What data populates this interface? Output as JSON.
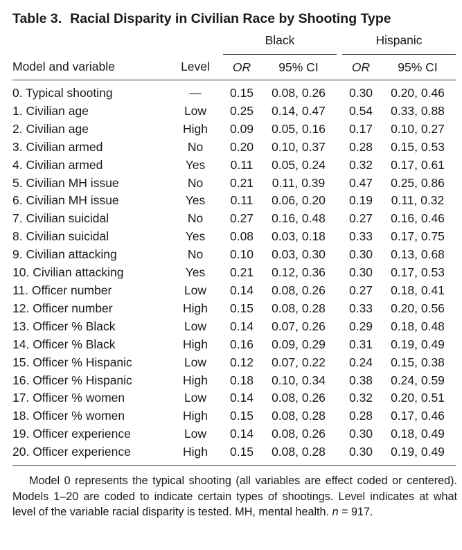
{
  "table": {
    "title_num": "Table 3.",
    "title_text": "Racial Disparity in Civilian Race by Shooting Type",
    "groups": {
      "black": "Black",
      "hispanic": "Hispanic"
    },
    "headers": {
      "model": "Model and variable",
      "level": "Level",
      "or_black": "OR",
      "ci_black": "95% CI",
      "or_hispanic": "OR",
      "ci_hispanic": "95% CI"
    },
    "rows": [
      {
        "model": "0. Typical shooting",
        "level": "—",
        "or_b": "0.15",
        "ci_b": "0.08, 0.26",
        "or_h": "0.30",
        "ci_h": "0.20, 0.46"
      },
      {
        "model": "1. Civilian age",
        "level": "Low",
        "or_b": "0.25",
        "ci_b": "0.14, 0.47",
        "or_h": "0.54",
        "ci_h": "0.33, 0.88"
      },
      {
        "model": "2. Civilian age",
        "level": "High",
        "or_b": "0.09",
        "ci_b": "0.05, 0.16",
        "or_h": "0.17",
        "ci_h": "0.10, 0.27"
      },
      {
        "model": "3. Civilian armed",
        "level": "No",
        "or_b": "0.20",
        "ci_b": "0.10, 0.37",
        "or_h": "0.28",
        "ci_h": "0.15, 0.53"
      },
      {
        "model": "4. Civilian armed",
        "level": "Yes",
        "or_b": "0.11",
        "ci_b": "0.05, 0.24",
        "or_h": "0.32",
        "ci_h": "0.17, 0.61"
      },
      {
        "model": "5. Civilian MH issue",
        "level": "No",
        "or_b": "0.21",
        "ci_b": "0.11, 0.39",
        "or_h": "0.47",
        "ci_h": "0.25, 0.86"
      },
      {
        "model": "6. Civilian MH issue",
        "level": "Yes",
        "or_b": "0.11",
        "ci_b": "0.06, 0.20",
        "or_h": "0.19",
        "ci_h": "0.11, 0.32"
      },
      {
        "model": "7. Civilian suicidal",
        "level": "No",
        "or_b": "0.27",
        "ci_b": "0.16, 0.48",
        "or_h": "0.27",
        "ci_h": "0.16, 0.46"
      },
      {
        "model": "8. Civilian suicidal",
        "level": "Yes",
        "or_b": "0.08",
        "ci_b": "0.03, 0.18",
        "or_h": "0.33",
        "ci_h": "0.17, 0.75"
      },
      {
        "model": "9. Civilian attacking",
        "level": "No",
        "or_b": "0.10",
        "ci_b": "0.03, 0.30",
        "or_h": "0.30",
        "ci_h": "0.13, 0.68"
      },
      {
        "model": "10. Civilian attacking",
        "level": "Yes",
        "or_b": "0.21",
        "ci_b": "0.12, 0.36",
        "or_h": "0.30",
        "ci_h": "0.17, 0.53"
      },
      {
        "model": "11. Officer number",
        "level": "Low",
        "or_b": "0.14",
        "ci_b": "0.08, 0.26",
        "or_h": "0.27",
        "ci_h": "0.18, 0.41"
      },
      {
        "model": "12. Officer number",
        "level": "High",
        "or_b": "0.15",
        "ci_b": "0.08, 0.28",
        "or_h": "0.33",
        "ci_h": "0.20, 0.56"
      },
      {
        "model": "13. Officer % Black",
        "level": "Low",
        "or_b": "0.14",
        "ci_b": "0.07, 0.26",
        "or_h": "0.29",
        "ci_h": "0.18, 0.48"
      },
      {
        "model": "14. Officer % Black",
        "level": "High",
        "or_b": "0.16",
        "ci_b": "0.09, 0.29",
        "or_h": "0.31",
        "ci_h": "0.19, 0.49"
      },
      {
        "model": "15. Officer % Hispanic",
        "level": "Low",
        "or_b": "0.12",
        "ci_b": "0.07, 0.22",
        "or_h": "0.24",
        "ci_h": "0.15, 0.38"
      },
      {
        "model": "16. Officer % Hispanic",
        "level": "High",
        "or_b": "0.18",
        "ci_b": "0.10, 0.34",
        "or_h": "0.38",
        "ci_h": "0.24, 0.59"
      },
      {
        "model": "17. Officer % women",
        "level": "Low",
        "or_b": "0.14",
        "ci_b": "0.08, 0.26",
        "or_h": "0.32",
        "ci_h": "0.20, 0.51"
      },
      {
        "model": "18. Officer % women",
        "level": "High",
        "or_b": "0.15",
        "ci_b": "0.08, 0.28",
        "or_h": "0.28",
        "ci_h": "0.17, 0.46"
      },
      {
        "model": "19. Officer experience",
        "level": "Low",
        "or_b": "0.14",
        "ci_b": "0.08, 0.26",
        "or_h": "0.30",
        "ci_h": "0.18, 0.49"
      },
      {
        "model": "20. Officer experience",
        "level": "High",
        "or_b": "0.15",
        "ci_b": "0.08, 0.28",
        "or_h": "0.30",
        "ci_h": "0.19, 0.49"
      }
    ],
    "note_main": "Model 0 represents the typical shooting (all variables are effect coded or centered). Models 1–20 are coded to indicate certain types of shootings. Level indicates at what level of the variable racial disparity is tested. MH, mental health.",
    "note_n_label": "n",
    "note_n_value": " = 917."
  }
}
